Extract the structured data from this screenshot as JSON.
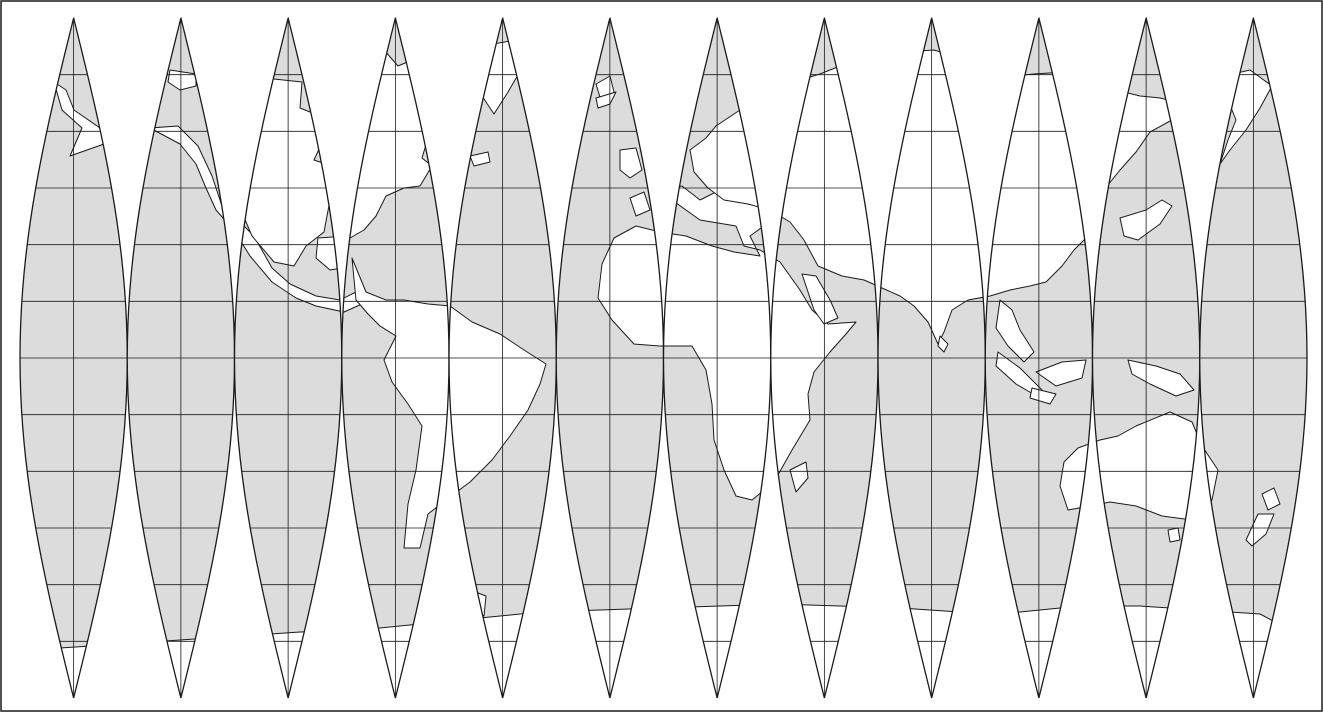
{
  "map": {
    "projection": "interrupted-globe-gores",
    "gore_count": 12,
    "parallel_step_degrees": 15,
    "colors": {
      "ocean": "#dcdcdc",
      "land": "#ffffff",
      "line": "#1a1a1a",
      "frame": "#1a1a1a",
      "background": "#ffffff"
    }
  }
}
